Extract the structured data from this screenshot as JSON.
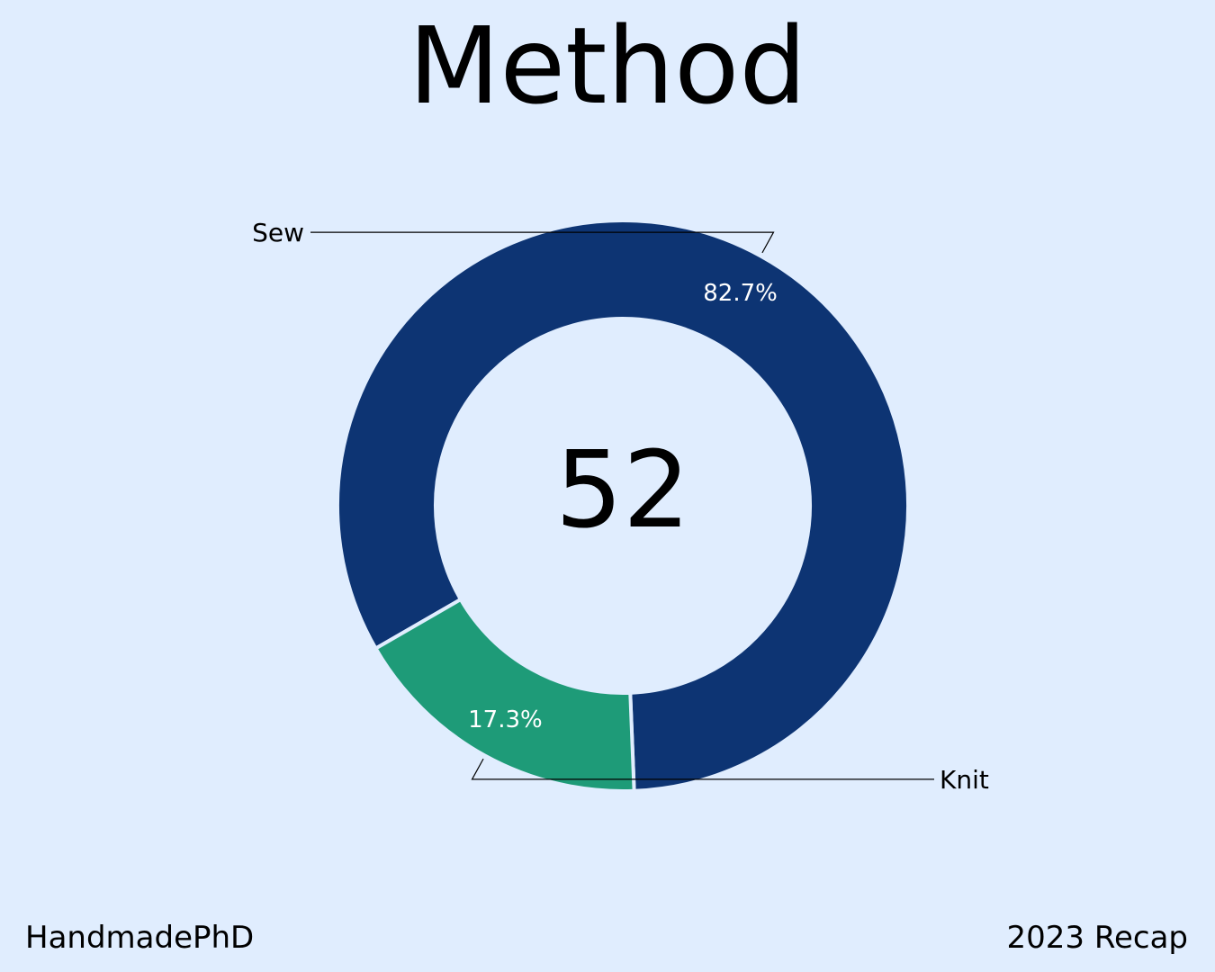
{
  "chart_data": {
    "type": "pie",
    "title": "Method",
    "center_label": "52",
    "slices": [
      {
        "name": "Sew",
        "value": 82.7,
        "label": "82.7%",
        "color": "#0d3473"
      },
      {
        "name": "Knit",
        "value": 17.3,
        "label": "17.3%",
        "color": "#1e9b78"
      }
    ],
    "hole": true
  },
  "footer": {
    "left": "HandmadePhD",
    "right": "2023 Recap"
  },
  "colors": {
    "background": "#e0edfe",
    "separator": "#e0edfe"
  }
}
